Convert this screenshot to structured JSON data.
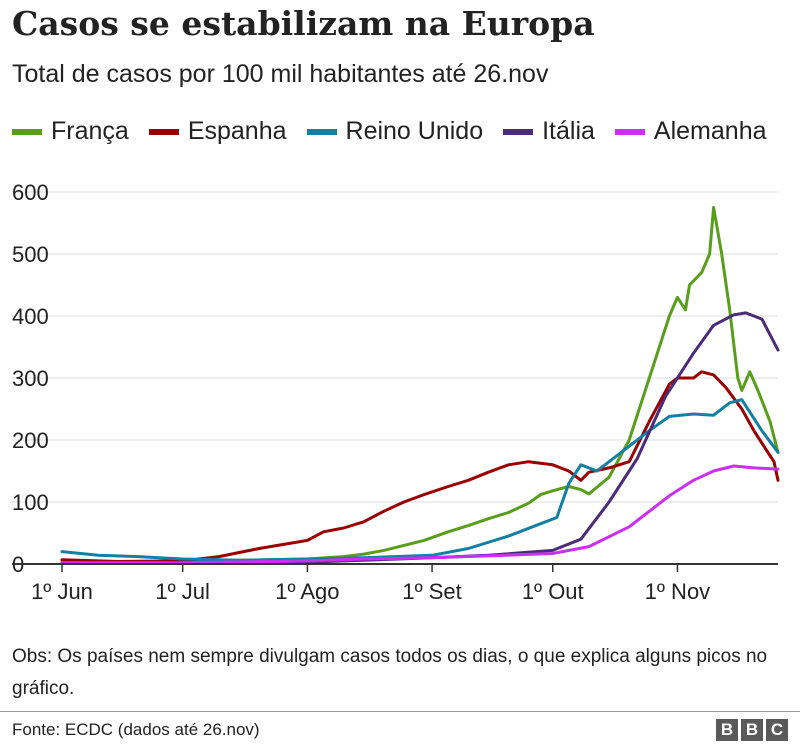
{
  "chart_data": {
    "type": "line",
    "title": "Casos se estabilizam na Europa",
    "subtitle": "Total de casos por 100 mil habitantes até 26.nov",
    "ylim": [
      0,
      600
    ],
    "y_ticks": [
      0,
      100,
      200,
      300,
      400,
      500,
      600
    ],
    "x_domain": [
      "2020-06-01",
      "2020-11-26"
    ],
    "x_ticks": [
      {
        "date": "2020-06-01",
        "label": "1º Jun"
      },
      {
        "date": "2020-07-01",
        "label": "1º Jul"
      },
      {
        "date": "2020-08-01",
        "label": "1º Ago"
      },
      {
        "date": "2020-09-01",
        "label": "1º Set"
      },
      {
        "date": "2020-10-01",
        "label": "1º Out"
      },
      {
        "date": "2020-11-01",
        "label": "1º Nov"
      }
    ],
    "grid": true,
    "legend_position": "top",
    "series": [
      {
        "name": "França",
        "color": "#589e1a",
        "points": [
          [
            "2020-06-01",
            4
          ],
          [
            "2020-06-15",
            3
          ],
          [
            "2020-07-01",
            5
          ],
          [
            "2020-07-15",
            6
          ],
          [
            "2020-08-01",
            8
          ],
          [
            "2020-08-10",
            12
          ],
          [
            "2020-08-15",
            16
          ],
          [
            "2020-08-20",
            22
          ],
          [
            "2020-08-25",
            30
          ],
          [
            "2020-08-30",
            38
          ],
          [
            "2020-09-05",
            52
          ],
          [
            "2020-09-10",
            62
          ],
          [
            "2020-09-15",
            73
          ],
          [
            "2020-09-20",
            83
          ],
          [
            "2020-09-25",
            98
          ],
          [
            "2020-09-28",
            112
          ],
          [
            "2020-10-01",
            118
          ],
          [
            "2020-10-05",
            125
          ],
          [
            "2020-10-08",
            120
          ],
          [
            "2020-10-10",
            113
          ],
          [
            "2020-10-15",
            140
          ],
          [
            "2020-10-20",
            200
          ],
          [
            "2020-10-25",
            300
          ],
          [
            "2020-10-30",
            400
          ],
          [
            "2020-11-01",
            430
          ],
          [
            "2020-11-03",
            410
          ],
          [
            "2020-11-04",
            450
          ],
          [
            "2020-11-07",
            470
          ],
          [
            "2020-11-09",
            500
          ],
          [
            "2020-11-10",
            575
          ],
          [
            "2020-11-12",
            500
          ],
          [
            "2020-11-14",
            410
          ],
          [
            "2020-11-16",
            300
          ],
          [
            "2020-11-17",
            280
          ],
          [
            "2020-11-19",
            310
          ],
          [
            "2020-11-21",
            280
          ],
          [
            "2020-11-24",
            230
          ],
          [
            "2020-11-26",
            180
          ]
        ]
      },
      {
        "name": "Espanha",
        "color": "#990000",
        "points": [
          [
            "2020-06-01",
            7
          ],
          [
            "2020-06-15",
            4
          ],
          [
            "2020-07-01",
            5
          ],
          [
            "2020-07-10",
            12
          ],
          [
            "2020-07-20",
            25
          ],
          [
            "2020-08-01",
            38
          ],
          [
            "2020-08-05",
            52
          ],
          [
            "2020-08-10",
            58
          ],
          [
            "2020-08-15",
            68
          ],
          [
            "2020-08-20",
            85
          ],
          [
            "2020-08-25",
            100
          ],
          [
            "2020-08-30",
            112
          ],
          [
            "2020-09-05",
            125
          ],
          [
            "2020-09-10",
            135
          ],
          [
            "2020-09-15",
            148
          ],
          [
            "2020-09-20",
            160
          ],
          [
            "2020-09-25",
            165
          ],
          [
            "2020-10-01",
            160
          ],
          [
            "2020-10-05",
            150
          ],
          [
            "2020-10-08",
            135
          ],
          [
            "2020-10-10",
            148
          ],
          [
            "2020-10-15",
            155
          ],
          [
            "2020-10-20",
            165
          ],
          [
            "2020-10-25",
            230
          ],
          [
            "2020-10-30",
            290
          ],
          [
            "2020-11-01",
            300
          ],
          [
            "2020-11-05",
            300
          ],
          [
            "2020-11-07",
            310
          ],
          [
            "2020-11-10",
            305
          ],
          [
            "2020-11-13",
            285
          ],
          [
            "2020-11-17",
            250
          ],
          [
            "2020-11-20",
            215
          ],
          [
            "2020-11-23",
            185
          ],
          [
            "2020-11-25",
            165
          ],
          [
            "2020-11-26",
            135
          ]
        ]
      },
      {
        "name": "Reino Unido",
        "color": "#1380a1",
        "points": [
          [
            "2020-06-01",
            20
          ],
          [
            "2020-06-10",
            14
          ],
          [
            "2020-06-20",
            12
          ],
          [
            "2020-07-01",
            8
          ],
          [
            "2020-07-15",
            6
          ],
          [
            "2020-08-01",
            8
          ],
          [
            "2020-08-15",
            10
          ],
          [
            "2020-09-01",
            14
          ],
          [
            "2020-09-10",
            25
          ],
          [
            "2020-09-20",
            45
          ],
          [
            "2020-09-28",
            65
          ],
          [
            "2020-10-02",
            75
          ],
          [
            "2020-10-05",
            130
          ],
          [
            "2020-10-08",
            160
          ],
          [
            "2020-10-12",
            150
          ],
          [
            "2020-10-15",
            165
          ],
          [
            "2020-10-20",
            190
          ],
          [
            "2020-10-25",
            215
          ],
          [
            "2020-10-30",
            238
          ],
          [
            "2020-11-05",
            242
          ],
          [
            "2020-11-10",
            240
          ],
          [
            "2020-11-14",
            260
          ],
          [
            "2020-11-17",
            265
          ],
          [
            "2020-11-19",
            245
          ],
          [
            "2020-11-22",
            215
          ],
          [
            "2020-11-26",
            180
          ]
        ]
      },
      {
        "name": "Itália",
        "color": "#4b2c78",
        "points": [
          [
            "2020-06-01",
            2
          ],
          [
            "2020-07-01",
            1
          ],
          [
            "2020-08-01",
            3
          ],
          [
            "2020-08-15",
            6
          ],
          [
            "2020-09-01",
            10
          ],
          [
            "2020-09-15",
            14
          ],
          [
            "2020-10-01",
            22
          ],
          [
            "2020-10-08",
            40
          ],
          [
            "2020-10-15",
            100
          ],
          [
            "2020-10-22",
            170
          ],
          [
            "2020-10-29",
            270
          ],
          [
            "2020-11-05",
            340
          ],
          [
            "2020-11-10",
            385
          ],
          [
            "2020-11-15",
            402
          ],
          [
            "2020-11-18",
            405
          ],
          [
            "2020-11-22",
            395
          ],
          [
            "2020-11-26",
            345
          ]
        ]
      },
      {
        "name": "Alemanha",
        "color": "#cc2ff3",
        "points": [
          [
            "2020-06-01",
            2
          ],
          [
            "2020-07-01",
            2
          ],
          [
            "2020-08-01",
            5
          ],
          [
            "2020-08-15",
            8
          ],
          [
            "2020-09-01",
            10
          ],
          [
            "2020-09-15",
            13
          ],
          [
            "2020-10-01",
            17
          ],
          [
            "2020-10-10",
            28
          ],
          [
            "2020-10-20",
            60
          ],
          [
            "2020-10-30",
            110
          ],
          [
            "2020-11-05",
            135
          ],
          [
            "2020-11-10",
            150
          ],
          [
            "2020-11-15",
            158
          ],
          [
            "2020-11-20",
            155
          ],
          [
            "2020-11-26",
            153
          ]
        ]
      }
    ]
  },
  "note": "Obs: Os países nem sempre divulgam casos todos os dias, o que explica alguns picos no gráfico.",
  "source": "Fonte: ECDC (dados até 26.nov)",
  "logo": [
    "B",
    "B",
    "C"
  ]
}
